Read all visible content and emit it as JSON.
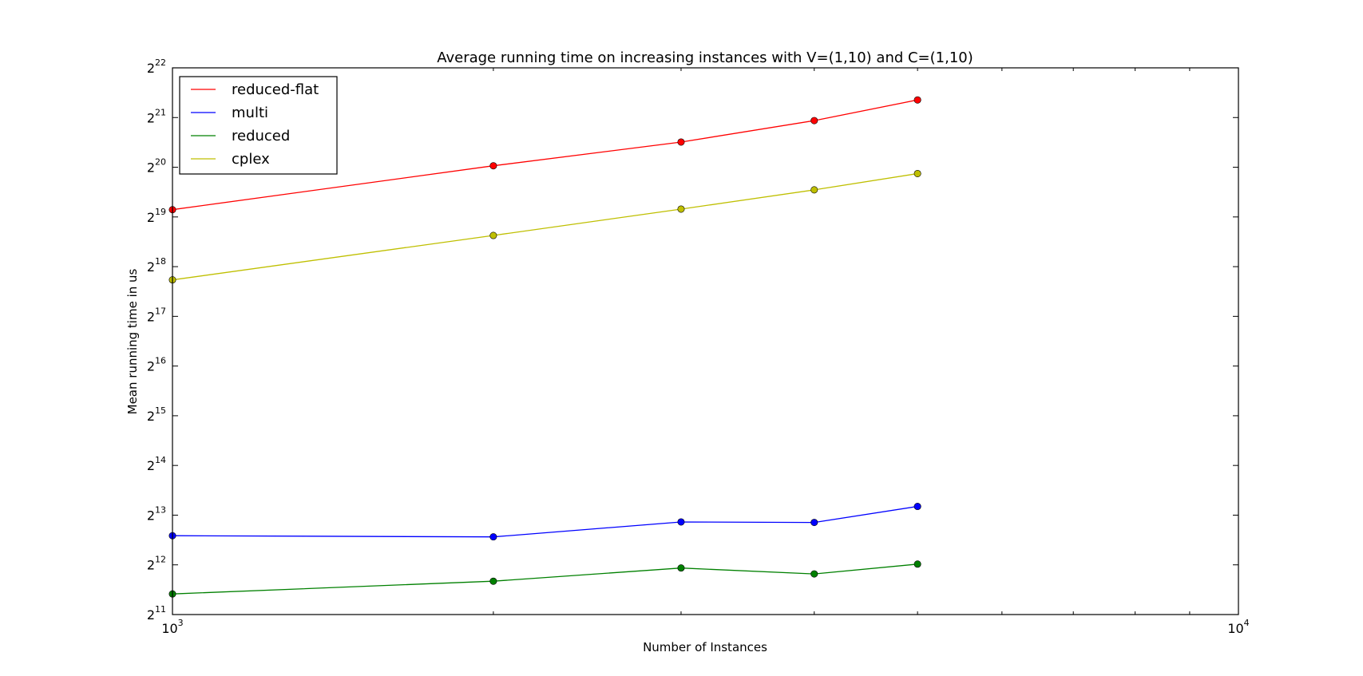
{
  "chart_data": {
    "type": "line",
    "title": "Average running time on increasing instances with V=(1,10) and C=(1,10)",
    "xlabel": "Number of Instances",
    "ylabel": "Mean running time in us",
    "x_scale": "log10",
    "y_scale": "log2",
    "xlim": [
      1000,
      10000
    ],
    "ylim": [
      2048,
      4194304
    ],
    "grid": false,
    "legend_position": "upper left",
    "x_ticks": [
      {
        "base": "10",
        "exp": "3",
        "value": 1000
      },
      {
        "base": "10",
        "exp": "4",
        "value": 10000
      }
    ],
    "y_ticks": [
      {
        "base": "2",
        "exp": "11",
        "value": 2048
      },
      {
        "base": "2",
        "exp": "12",
        "value": 4096
      },
      {
        "base": "2",
        "exp": "13",
        "value": 8192
      },
      {
        "base": "2",
        "exp": "14",
        "value": 16384
      },
      {
        "base": "2",
        "exp": "15",
        "value": 32768
      },
      {
        "base": "2",
        "exp": "16",
        "value": 65536
      },
      {
        "base": "2",
        "exp": "17",
        "value": 131072
      },
      {
        "base": "2",
        "exp": "18",
        "value": 262144
      },
      {
        "base": "2",
        "exp": "19",
        "value": 524288
      },
      {
        "base": "2",
        "exp": "20",
        "value": 1048576
      },
      {
        "base": "2",
        "exp": "21",
        "value": 2097152
      },
      {
        "base": "2",
        "exp": "22",
        "value": 4194304
      }
    ],
    "x": [
      1000,
      2000,
      3000,
      4000,
      5000
    ],
    "series": [
      {
        "name": "reduced-flat",
        "color": "#ff0000",
        "values": [
          580000,
          1070000,
          1490000,
          2010000,
          2680000
        ]
      },
      {
        "name": "multi",
        "color": "#0000ff",
        "values": [
          6150,
          6050,
          7450,
          7400,
          9250
        ]
      },
      {
        "name": "reduced",
        "color": "#008000",
        "values": [
          2730,
          3260,
          3920,
          3610,
          4140
        ]
      },
      {
        "name": "cplex",
        "color": "#bfbf00",
        "values": [
          218000,
          405000,
          585000,
          765000,
          960000
        ]
      }
    ]
  }
}
